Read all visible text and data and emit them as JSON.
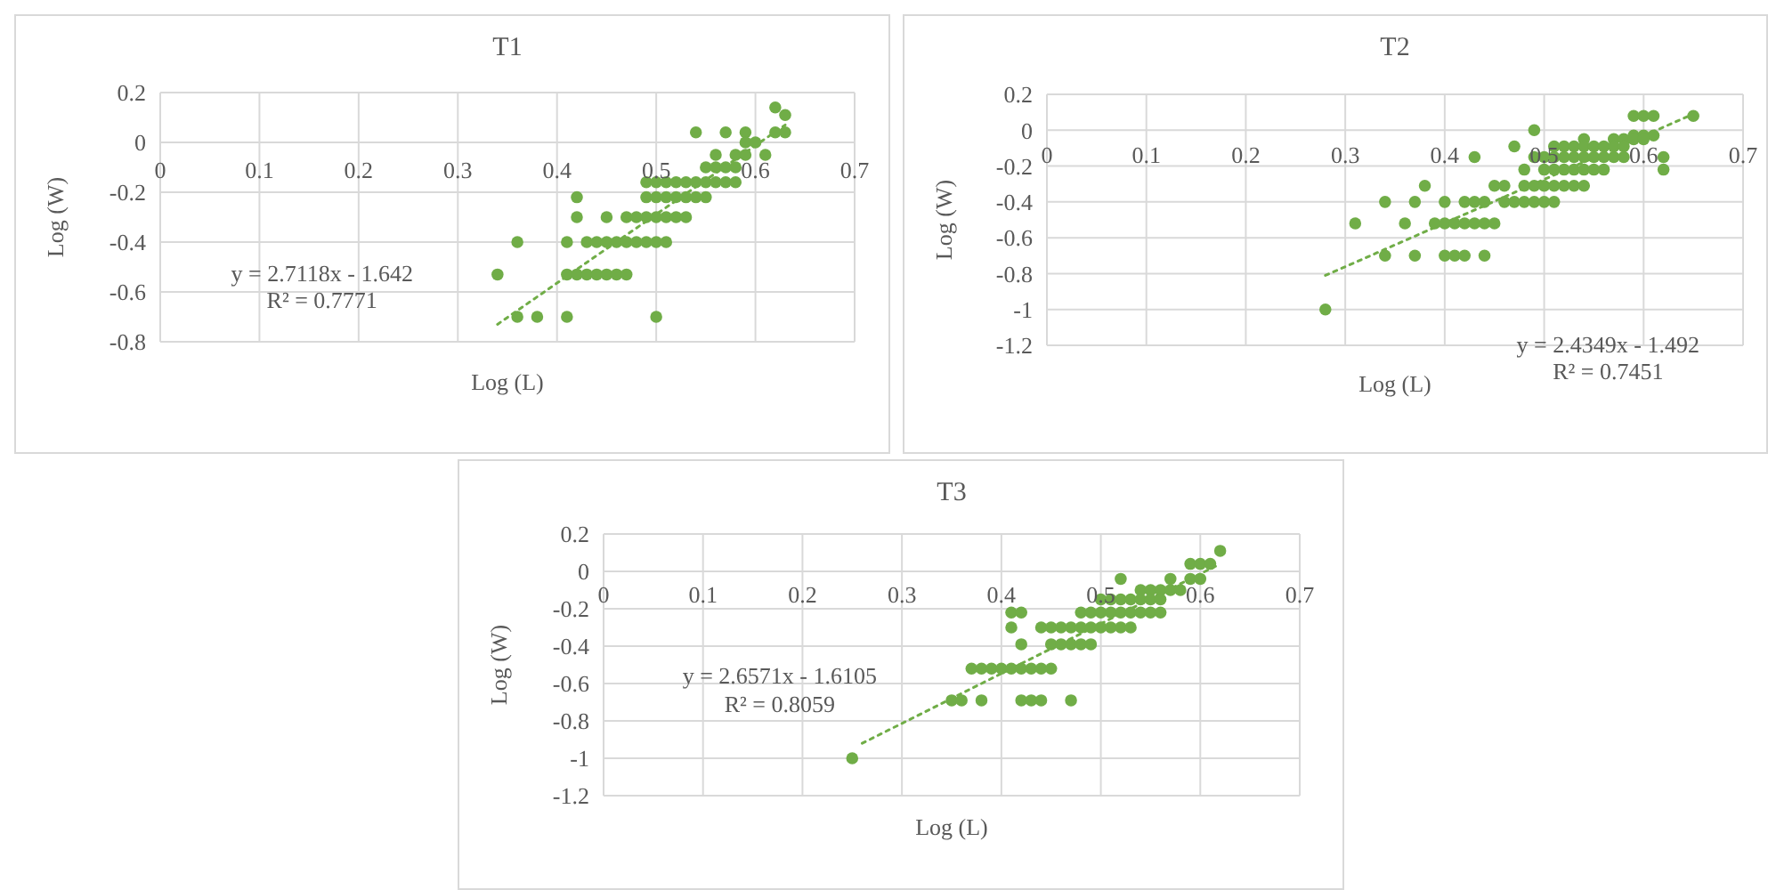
{
  "chart_data": [
    {
      "type": "scatter",
      "title": "T1",
      "xlabel": "Log (L)",
      "ylabel": "Log (W)",
      "xlim": [
        0,
        0.7
      ],
      "ylim": [
        -0.8,
        0.2
      ],
      "xticks": [
        0,
        0.1,
        0.2,
        0.3,
        0.4,
        0.5,
        0.6,
        0.7
      ],
      "yticks": [
        -0.8,
        -0.6,
        -0.4,
        -0.2,
        0,
        0.2
      ],
      "grid": true,
      "annotations": [
        "y = 2.7118x - 1.642",
        "R² = 0.7771"
      ],
      "series": [
        {
          "marker": "circle",
          "color": "#70ad47",
          "x": [
            0.62,
            0.63,
            0.54,
            0.57,
            0.59,
            0.62,
            0.63,
            0.59,
            0.6,
            0.56,
            0.58,
            0.59,
            0.61,
            0.55,
            0.56,
            0.57,
            0.58,
            0.49,
            0.5,
            0.51,
            0.52,
            0.53,
            0.54,
            0.55,
            0.56,
            0.57,
            0.58,
            0.42,
            0.49,
            0.5,
            0.51,
            0.52,
            0.53,
            0.54,
            0.55,
            0.42,
            0.45,
            0.47,
            0.48,
            0.49,
            0.5,
            0.51,
            0.52,
            0.53,
            0.36,
            0.41,
            0.43,
            0.44,
            0.45,
            0.46,
            0.47,
            0.48,
            0.49,
            0.5,
            0.51,
            0.34,
            0.41,
            0.42,
            0.43,
            0.44,
            0.45,
            0.46,
            0.47,
            0.36,
            0.38,
            0.41,
            0.5
          ],
          "values": [
            0.14,
            0.11,
            0.04,
            0.04,
            0.04,
            0.04,
            0.04,
            0,
            0,
            -0.05,
            -0.05,
            -0.05,
            -0.05,
            -0.1,
            -0.1,
            -0.1,
            -0.1,
            -0.16,
            -0.16,
            -0.16,
            -0.16,
            -0.16,
            -0.16,
            -0.16,
            -0.16,
            -0.16,
            -0.16,
            -0.22,
            -0.22,
            -0.22,
            -0.22,
            -0.22,
            -0.22,
            -0.22,
            -0.22,
            -0.3,
            -0.3,
            -0.3,
            -0.3,
            -0.3,
            -0.3,
            -0.3,
            -0.3,
            -0.3,
            -0.4,
            -0.4,
            -0.4,
            -0.4,
            -0.4,
            -0.4,
            -0.4,
            -0.4,
            -0.4,
            -0.4,
            -0.4,
            -0.53,
            -0.53,
            -0.53,
            -0.53,
            -0.53,
            -0.53,
            -0.53,
            -0.53,
            -0.7,
            -0.7,
            -0.7,
            -0.7
          ]
        },
        {
          "type": "line",
          "color": "#70ad47",
          "line_style": "dotted",
          "x": [
            0.34,
            0.63
          ],
          "values": [
            -0.73,
            0.07
          ]
        }
      ]
    },
    {
      "type": "scatter",
      "title": "T2",
      "xlabel": "Log (L)",
      "ylabel": "Log (W)",
      "xlim": [
        0,
        0.7
      ],
      "ylim": [
        -1.2,
        0.2
      ],
      "xticks": [
        0,
        0.1,
        0.2,
        0.3,
        0.4,
        0.5,
        0.6,
        0.7
      ],
      "yticks": [
        -1.2,
        -1,
        -0.8,
        -0.6,
        -0.4,
        -0.2,
        0,
        0.2
      ],
      "grid": true,
      "annotations": [
        "y = 2.4349x - 1.492",
        "R² = 0.7451"
      ],
      "series": [
        {
          "marker": "circle",
          "color": "#70ad47",
          "x": [
            0.65,
            0.59,
            0.6,
            0.61,
            0.49,
            0.59,
            0.6,
            0.61,
            0.54,
            0.57,
            0.58,
            0.59,
            0.6,
            0.47,
            0.51,
            0.52,
            0.53,
            0.54,
            0.55,
            0.56,
            0.57,
            0.58,
            0.43,
            0.49,
            0.5,
            0.51,
            0.52,
            0.53,
            0.54,
            0.55,
            0.56,
            0.57,
            0.58,
            0.62,
            0.48,
            0.5,
            0.51,
            0.52,
            0.53,
            0.54,
            0.55,
            0.56,
            0.62,
            0.38,
            0.45,
            0.46,
            0.48,
            0.49,
            0.5,
            0.51,
            0.52,
            0.53,
            0.54,
            0.34,
            0.37,
            0.4,
            0.42,
            0.43,
            0.44,
            0.46,
            0.47,
            0.48,
            0.49,
            0.5,
            0.51,
            0.31,
            0.36,
            0.39,
            0.4,
            0.41,
            0.42,
            0.43,
            0.44,
            0.45,
            0.34,
            0.37,
            0.4,
            0.41,
            0.42,
            0.44,
            0.28
          ],
          "values": [
            0.08,
            0.08,
            0.08,
            0.08,
            0,
            -0.03,
            -0.03,
            -0.03,
            -0.05,
            -0.05,
            -0.05,
            -0.05,
            -0.05,
            -0.09,
            -0.09,
            -0.09,
            -0.09,
            -0.09,
            -0.09,
            -0.09,
            -0.09,
            -0.09,
            -0.15,
            -0.15,
            -0.15,
            -0.15,
            -0.15,
            -0.15,
            -0.15,
            -0.15,
            -0.15,
            -0.15,
            -0.15,
            -0.15,
            -0.22,
            -0.22,
            -0.22,
            -0.22,
            -0.22,
            -0.22,
            -0.22,
            -0.22,
            -0.22,
            -0.31,
            -0.31,
            -0.31,
            -0.31,
            -0.31,
            -0.31,
            -0.31,
            -0.31,
            -0.31,
            -0.31,
            -0.4,
            -0.4,
            -0.4,
            -0.4,
            -0.4,
            -0.4,
            -0.4,
            -0.4,
            -0.4,
            -0.4,
            -0.4,
            -0.4,
            -0.52,
            -0.52,
            -0.52,
            -0.52,
            -0.52,
            -0.52,
            -0.52,
            -0.52,
            -0.52,
            -0.7,
            -0.7,
            -0.7,
            -0.7,
            -0.7,
            -0.7,
            -1
          ]
        },
        {
          "type": "line",
          "color": "#70ad47",
          "line_style": "dotted",
          "x": [
            0.28,
            0.65
          ],
          "values": [
            -0.81,
            0.09
          ]
        }
      ]
    },
    {
      "type": "scatter",
      "title": "T3",
      "xlabel": "Log (L)",
      "ylabel": "Log (W)",
      "xlim": [
        0,
        0.7
      ],
      "ylim": [
        -1.2,
        0.2
      ],
      "xticks": [
        0,
        0.1,
        0.2,
        0.3,
        0.4,
        0.5,
        0.6,
        0.7
      ],
      "yticks": [
        -1.2,
        -1,
        -0.8,
        -0.6,
        -0.4,
        -0.2,
        0,
        0.2
      ],
      "grid": true,
      "annotations": [
        "y = 2.6571x - 1.6105",
        "R² = 0.8059"
      ],
      "series": [
        {
          "marker": "circle",
          "color": "#70ad47",
          "x": [
            0.62,
            0.59,
            0.6,
            0.61,
            0.52,
            0.57,
            0.59,
            0.6,
            0.54,
            0.55,
            0.56,
            0.57,
            0.58,
            0.5,
            0.51,
            0.52,
            0.53,
            0.54,
            0.55,
            0.56,
            0.41,
            0.42,
            0.48,
            0.49,
            0.5,
            0.51,
            0.52,
            0.53,
            0.54,
            0.55,
            0.56,
            0.41,
            0.44,
            0.45,
            0.46,
            0.47,
            0.48,
            0.49,
            0.5,
            0.51,
            0.52,
            0.53,
            0.42,
            0.45,
            0.46,
            0.47,
            0.48,
            0.49,
            0.37,
            0.38,
            0.39,
            0.4,
            0.41,
            0.42,
            0.43,
            0.44,
            0.45,
            0.35,
            0.36,
            0.38,
            0.42,
            0.43,
            0.44,
            0.47,
            0.25
          ],
          "values": [
            0.11,
            0.04,
            0.04,
            0.04,
            -0.04,
            -0.04,
            -0.04,
            -0.04,
            -0.1,
            -0.1,
            -0.1,
            -0.1,
            -0.1,
            -0.15,
            -0.15,
            -0.15,
            -0.15,
            -0.15,
            -0.15,
            -0.15,
            -0.22,
            -0.22,
            -0.22,
            -0.22,
            -0.22,
            -0.22,
            -0.22,
            -0.22,
            -0.22,
            -0.22,
            -0.22,
            -0.3,
            -0.3,
            -0.3,
            -0.3,
            -0.3,
            -0.3,
            -0.3,
            -0.3,
            -0.3,
            -0.3,
            -0.3,
            -0.39,
            -0.39,
            -0.39,
            -0.39,
            -0.39,
            -0.39,
            -0.52,
            -0.52,
            -0.52,
            -0.52,
            -0.52,
            -0.52,
            -0.52,
            -0.52,
            -0.52,
            -0.69,
            -0.69,
            -0.69,
            -0.69,
            -0.69,
            -0.69,
            -0.69,
            -1
          ]
        },
        {
          "type": "line",
          "color": "#70ad47",
          "line_style": "dotted",
          "x": [
            0.26,
            0.62
          ],
          "values": [
            -0.92,
            0.04
          ]
        }
      ]
    }
  ]
}
